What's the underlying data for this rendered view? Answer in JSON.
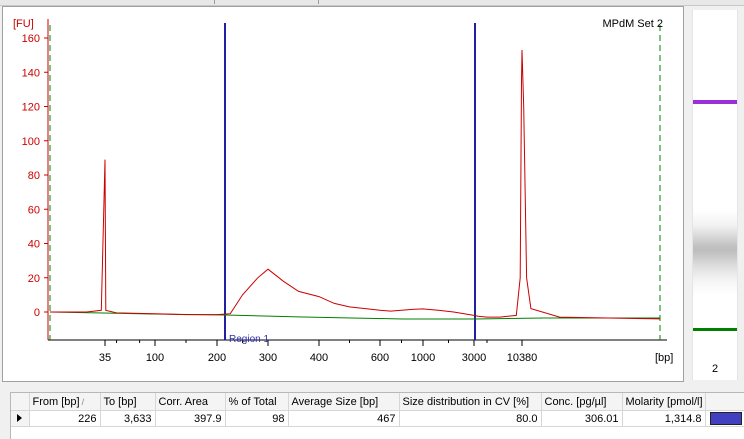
{
  "plot": {
    "title": "MPdM Set 2",
    "y_unit_label": "[FU]",
    "x_unit_label": "[bp]",
    "region_label": "Region 1",
    "y_ticks": [
      "0",
      "20",
      "40",
      "60",
      "80",
      "100",
      "120",
      "140",
      "160"
    ],
    "x_ticks": [
      "35",
      "100",
      "200",
      "300",
      "400",
      "600",
      "1000",
      "3000",
      "10380"
    ],
    "colors": {
      "trace": "#cc0000",
      "baseline": "#008000",
      "markers": "#008000",
      "region_lines": "#2020a0",
      "axis_y": "#cc0000"
    }
  },
  "chart_data": {
    "type": "line",
    "title": "MPdM Set 2",
    "xlabel": "[bp]",
    "ylabel": "[FU]",
    "ylim": [
      -10,
      165
    ],
    "x_axis": "nonlinear electropherogram size axis (ladder calibrated)",
    "x_tick_labels": [
      "35",
      "100",
      "200",
      "300",
      "400",
      "600",
      "1000",
      "3000",
      "10380"
    ],
    "region": {
      "label": "Region 1",
      "from_bp": 226,
      "to_bp": 3633
    },
    "series": [
      {
        "name": "",
        "points_bp_fu": [
          [
            20,
            0
          ],
          [
            30,
            0
          ],
          [
            34,
            1
          ],
          [
            35,
            89
          ],
          [
            36,
            1
          ],
          [
            50,
            -0.5
          ],
          [
            100,
            -1
          ],
          [
            150,
            -1.5
          ],
          [
            200,
            -1.5
          ],
          [
            226,
            -1
          ],
          [
            250,
            10
          ],
          [
            280,
            20
          ],
          [
            300,
            25
          ],
          [
            330,
            18
          ],
          [
            360,
            12
          ],
          [
            400,
            9
          ],
          [
            450,
            5
          ],
          [
            500,
            3
          ],
          [
            600,
            1
          ],
          [
            700,
            0.5
          ],
          [
            800,
            1
          ],
          [
            900,
            1.5
          ],
          [
            1000,
            1.8
          ],
          [
            1200,
            1.5
          ],
          [
            1600,
            1
          ],
          [
            2200,
            0
          ],
          [
            3000,
            -2
          ],
          [
            3633,
            -2.5
          ],
          [
            5000,
            -3
          ],
          [
            7000,
            -3
          ],
          [
            9500,
            -2
          ],
          [
            10100,
            20
          ],
          [
            10300,
            135
          ],
          [
            10380,
            153
          ],
          [
            10500,
            120
          ],
          [
            10700,
            20
          ],
          [
            11000,
            2
          ],
          [
            13000,
            -3
          ],
          [
            20000,
            -4
          ]
        ]
      }
    ],
    "markers_bp": [
      35,
      10380
    ]
  },
  "gel": {
    "lane_label": "2",
    "colors": {
      "upper_marker": "#9b30d9",
      "lower_marker": "#008000"
    }
  },
  "table": {
    "headers": [
      "From [bp]",
      "To [bp]",
      "Corr. Area",
      "% of Total",
      "Average Size [bp]",
      "Size distribution in CV [%]",
      "Conc. [pg/µl]",
      "Molarity [pmol/l]"
    ],
    "sort_indicator": "/",
    "rows": [
      {
        "from": "226",
        "to": "3,633",
        "corr_area": "397.9",
        "pct_total": "98",
        "avg_size": "467",
        "cv": "80.0",
        "conc": "306.01",
        "molarity": "1,314.8",
        "color": "#4040c0"
      }
    ]
  }
}
